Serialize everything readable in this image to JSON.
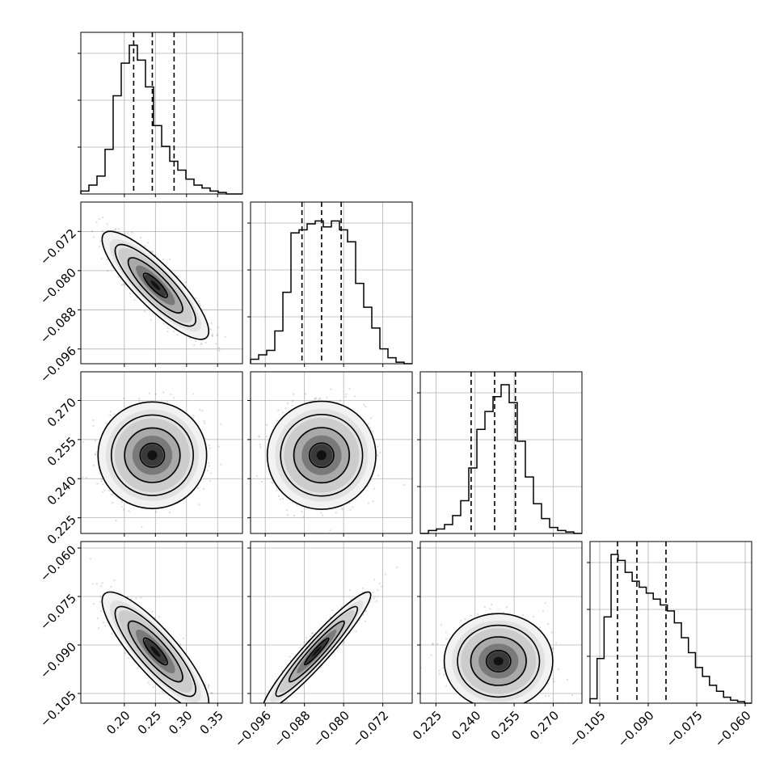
{
  "chart_data": {
    "type": "corner",
    "colors": {
      "line": "#000000",
      "grid": "#b0b0b0",
      "points": "#000000",
      "background": "#ffffff"
    },
    "grid": true,
    "parameters": [
      {
        "range": [
          0.13,
          0.39
        ],
        "ticks": [
          0.2,
          0.25,
          0.3,
          0.35
        ],
        "tick_labels": [
          "0.20",
          "0.25",
          "0.30",
          "0.35"
        ],
        "quantiles": [
          0.215,
          0.245,
          0.28
        ],
        "histogram": [
          0.02,
          0.06,
          0.12,
          0.3,
          0.66,
          0.88,
          1.0,
          0.9,
          0.72,
          0.46,
          0.32,
          0.22,
          0.16,
          0.1,
          0.06,
          0.04,
          0.02,
          0.01,
          0.0,
          0.0
        ]
      },
      {
        "range": [
          -0.099,
          -0.066
        ],
        "ticks": [
          -0.096,
          -0.088,
          -0.08,
          -0.072
        ],
        "tick_labels": [
          "−0.096",
          "−0.088",
          "−0.080",
          "−0.072"
        ],
        "quantiles": [
          -0.0885,
          -0.0845,
          -0.0805
        ],
        "histogram": [
          0.03,
          0.06,
          0.09,
          0.22,
          0.48,
          0.88,
          0.9,
          0.94,
          0.96,
          0.92,
          0.96,
          0.9,
          0.82,
          0.54,
          0.38,
          0.24,
          0.1,
          0.04,
          0.01,
          0.0
        ]
      },
      {
        "range": [
          0.219,
          0.281
        ],
        "ticks": [
          0.225,
          0.24,
          0.255,
          0.27
        ],
        "tick_labels": [
          "0.225",
          "0.240",
          "0.255",
          "0.270"
        ],
        "quantiles": [
          0.2385,
          0.2475,
          0.2555
        ],
        "histogram": [
          0.0,
          0.02,
          0.03,
          0.06,
          0.12,
          0.22,
          0.44,
          0.7,
          0.82,
          0.92,
          1.0,
          0.88,
          0.62,
          0.38,
          0.2,
          0.1,
          0.04,
          0.02,
          0.01,
          0.0
        ]
      },
      {
        "range": [
          -0.108,
          -0.058
        ],
        "ticks": [
          -0.105,
          -0.09,
          -0.075,
          -0.06
        ],
        "tick_labels": [
          "−0.105",
          "−0.090",
          "−0.075",
          "−0.060"
        ],
        "quantiles": [
          -0.0995,
          -0.0935,
          -0.0845
        ],
        "histogram": [
          0.03,
          0.3,
          0.58,
          1.0,
          0.96,
          0.88,
          0.82,
          0.78,
          0.74,
          0.7,
          0.66,
          0.62,
          0.54,
          0.44,
          0.34,
          0.24,
          0.18,
          0.12,
          0.08,
          0.04,
          0.02,
          0.01,
          0.0
        ]
      }
    ],
    "pairs": [
      {
        "x": 0,
        "y": 1,
        "mean": [
          0.25,
          -0.083
        ],
        "sd": [
          0.035,
          0.0045
        ],
        "corr": -0.85
      },
      {
        "x": 0,
        "y": 2,
        "mean": [
          0.245,
          0.249
        ],
        "sd": [
          0.035,
          0.0085
        ],
        "corr": 0.0
      },
      {
        "x": 1,
        "y": 2,
        "mean": [
          -0.0845,
          0.249
        ],
        "sd": [
          0.0045,
          0.0085
        ],
        "corr": 0.0
      },
      {
        "x": 0,
        "y": 3,
        "mean": [
          0.25,
          -0.092
        ],
        "sd": [
          0.035,
          0.0075
        ],
        "corr": -0.85
      },
      {
        "x": 1,
        "y": 3,
        "mean": [
          -0.0855,
          -0.092
        ],
        "sd": [
          0.0045,
          0.0075
        ],
        "corr": 0.95
      },
      {
        "x": 2,
        "y": 3,
        "mean": [
          0.249,
          -0.095
        ],
        "sd": [
          0.0085,
          0.006
        ],
        "corr": 0.0
      }
    ]
  }
}
